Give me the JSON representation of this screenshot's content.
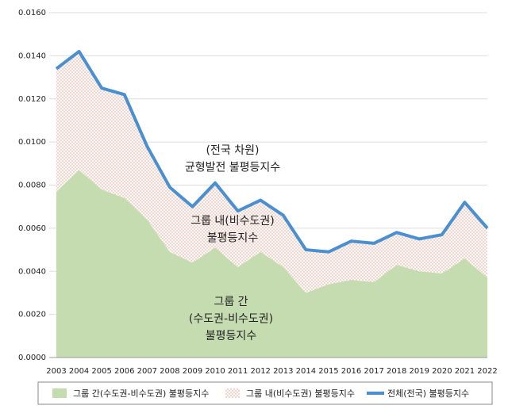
{
  "chart_data": {
    "type": "stacked-area-line",
    "categories": [
      "2003",
      "2004",
      "2005",
      "2006",
      "2007",
      "2008",
      "2009",
      "2010",
      "2011",
      "2012",
      "2013",
      "2014",
      "2015",
      "2016",
      "2017",
      "2018",
      "2019",
      "2020",
      "2021",
      "2022"
    ],
    "series": [
      {
        "name": "그룹 간(수도권-비수도권) 불평등지수",
        "color": "#c5dcb0",
        "kind": "area",
        "values": [
          0.0077,
          0.0087,
          0.0078,
          0.0074,
          0.0064,
          0.0049,
          0.0044,
          0.0051,
          0.0042,
          0.0049,
          0.0042,
          0.003,
          0.0034,
          0.0036,
          0.0035,
          0.0043,
          0.004,
          0.0039,
          0.0046,
          0.0037
        ]
      },
      {
        "name": "그룹 내(비수도권) 불평등지수",
        "color": "#e8c8c0",
        "kind": "dotted-area",
        "values": [
          0.0057,
          0.0055,
          0.0047,
          0.0048,
          0.0034,
          0.003,
          0.0026,
          0.003,
          0.0026,
          0.0024,
          0.0024,
          0.002,
          0.0015,
          0.0018,
          0.0018,
          0.0015,
          0.0015,
          0.0018,
          0.0026,
          0.0023
        ]
      },
      {
        "name": "전체(전국) 불평등지수",
        "color": "#4a8fd0",
        "kind": "line",
        "values": [
          0.0134,
          0.0142,
          0.0125,
          0.0122,
          0.0098,
          0.0079,
          0.007,
          0.0081,
          0.0068,
          0.0073,
          0.0066,
          0.005,
          0.0049,
          0.0054,
          0.0053,
          0.0058,
          0.0055,
          0.0057,
          0.0072,
          0.006
        ]
      }
    ],
    "ylim": [
      0,
      0.016
    ],
    "yticks": [
      {
        "value": 0,
        "label": "0.0000"
      },
      {
        "value": 0.002,
        "label": "0.0020"
      },
      {
        "value": 0.004,
        "label": "0.0040"
      },
      {
        "value": 0.006,
        "label": "0.0060"
      },
      {
        "value": 0.008,
        "label": "0.0080"
      },
      {
        "value": 0.01,
        "label": "0.0100"
      },
      {
        "value": 0.012,
        "label": "0.0120"
      },
      {
        "value": 0.014,
        "label": "0.0140"
      },
      {
        "value": 0.016,
        "label": "0.0160"
      }
    ],
    "grid": true,
    "legend": "bottom",
    "annotations": [
      {
        "lines": [
          "(전국 차원)",
          "균형발전 불평등지수"
        ]
      },
      {
        "lines": [
          "그룹 내(비수도권)",
          "불평등지수"
        ]
      },
      {
        "lines": [
          "그룹 간",
          "(수도권-비수도권)",
          "불평등지수"
        ]
      }
    ]
  }
}
